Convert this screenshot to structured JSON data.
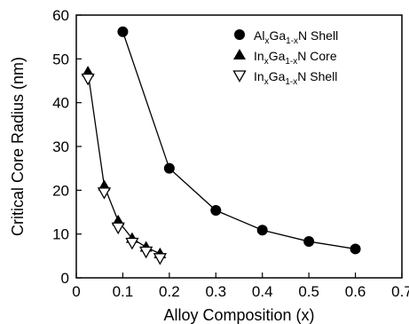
{
  "chart_data": {
    "type": "scatter",
    "title": "",
    "xlabel": "Alloy Composition (x)",
    "ylabel": "Critical Core Radius (nm)",
    "xlim": [
      0,
      0.7
    ],
    "ylim": [
      0,
      60
    ],
    "xticks": [
      "0",
      "0.1",
      "0.2",
      "0.3",
      "0.4",
      "0.5",
      "0.6",
      "0.7"
    ],
    "yticks": [
      "0",
      "10",
      "20",
      "30",
      "40",
      "50",
      "60"
    ],
    "grid": false,
    "legend_position": "top-right",
    "series": [
      {
        "name": "AlₓGa₁₋ₓN Shell",
        "legend": {
          "base1": "Al",
          "sub1": "x",
          "base2": "Ga",
          "sub2": "1-x",
          "tail": "N Shell"
        },
        "marker": "filled-circle",
        "line": true,
        "x": [
          0.1,
          0.2,
          0.3,
          0.4,
          0.5,
          0.6
        ],
        "y": [
          56.2,
          25.0,
          15.4,
          10.9,
          8.3,
          6.6
        ]
      },
      {
        "name": "InₓGa₁₋ₓN Core",
        "legend": {
          "base1": "In",
          "sub1": "x",
          "base2": "Ga",
          "sub2": "1-x",
          "tail": "N Core"
        },
        "marker": "filled-triangle-up",
        "line": true,
        "x": [
          0.025,
          0.06,
          0.09,
          0.12,
          0.15,
          0.18
        ],
        "y": [
          47.0,
          21.0,
          13.0,
          9.0,
          7.0,
          5.5
        ]
      },
      {
        "name": "InₓGa₁₋ₓN Shell",
        "legend": {
          "base1": "In",
          "sub1": "x",
          "base2": "Ga",
          "sub2": "1-x",
          "tail": "N Shell"
        },
        "marker": "open-triangle-down",
        "line": false,
        "x": [
          0.025,
          0.06,
          0.09,
          0.12,
          0.15,
          0.18
        ],
        "y": [
          45.5,
          19.5,
          11.5,
          8.0,
          6.0,
          4.5
        ]
      }
    ]
  }
}
